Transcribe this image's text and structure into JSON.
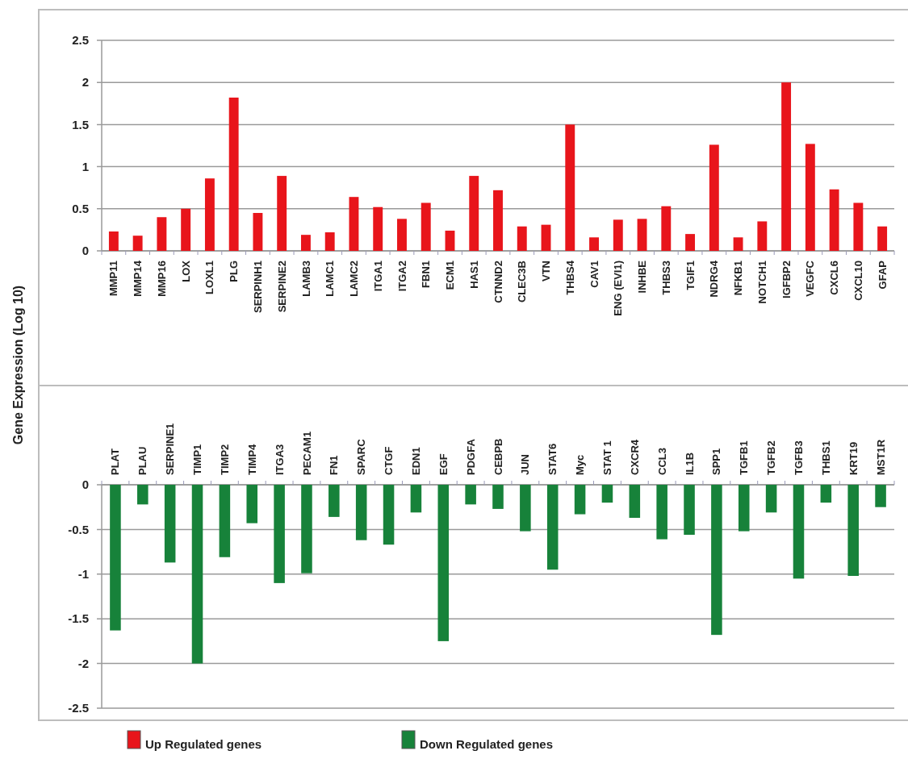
{
  "chart_data": [
    {
      "type": "bar",
      "ylabel": "Gene Expression (Log 10)",
      "categories": [
        "MMP11",
        "MMP14",
        "MMP16",
        "LOX",
        "LOXL1",
        "PLG",
        "SERPINH1",
        "SERPINE2",
        "LAMB3",
        "LAMC1",
        "LAMC2",
        "ITGA1",
        "ITGA2",
        "FBN1",
        "ECM1",
        "HAS1",
        "CTNND2",
        "CLEC3B",
        "VTN",
        "THBS4",
        "CAV1",
        "ENG (EVI1)",
        "INHBE",
        "THBS3",
        "TGIF1",
        "NDRG4",
        "NFKB1",
        "NOTCH1",
        "IGFBP2",
        "VEGFC",
        "CXCL6",
        "CXCL10",
        "GFAP"
      ],
      "series": [
        {
          "name": "Up Regulated genes",
          "color": "#e8151b",
          "values": [
            0.23,
            0.18,
            0.4,
            0.5,
            0.86,
            1.82,
            0.45,
            0.89,
            0.19,
            0.22,
            0.64,
            0.52,
            0.38,
            0.57,
            0.24,
            0.89,
            0.72,
            0.29,
            0.31,
            1.5,
            0.16,
            0.37,
            0.38,
            0.53,
            0.2,
            1.26,
            0.16,
            0.35,
            2.0,
            1.27,
            0.73,
            0.57,
            0.29
          ]
        }
      ],
      "ylim": [
        0,
        2.5
      ],
      "yticks": [
        0,
        0.5,
        1,
        1.5,
        2,
        2.5
      ],
      "grid": "y",
      "legend": "bottom"
    },
    {
      "type": "bar",
      "categories": [
        "PLAT",
        "PLAU",
        "SERPINE1",
        "TIMP1",
        "TIMP2",
        "TIMP4",
        "ITGA3",
        "PECAM1",
        "FN1",
        "SPARC",
        "CTGF",
        "EDN1",
        "EGF",
        "PDGFA",
        "CEBPB",
        "JUN",
        "STAT6",
        "Myc",
        "STAT 1",
        "CXCR4",
        "CCL3",
        "IL1B",
        "SPP1",
        "TGFB1",
        "TGFB2",
        "TGFB3",
        "THBS1",
        "KRT19",
        "MST1R"
      ],
      "series": [
        {
          "name": "Down Regulated genes",
          "color": "#17823a",
          "values": [
            -1.63,
            -0.22,
            -0.87,
            -2.0,
            -0.81,
            -0.43,
            -1.1,
            -0.99,
            -0.36,
            -0.62,
            -0.67,
            -0.31,
            -1.75,
            -0.22,
            -0.27,
            -0.52,
            -0.95,
            -0.33,
            -0.2,
            -0.37,
            -0.61,
            -0.56,
            -1.68,
            -0.52,
            -0.31,
            -1.05,
            -0.2,
            -1.02,
            -0.25
          ]
        }
      ],
      "ylim": [
        -2.5,
        0
      ],
      "yticks": [
        -2.5,
        -2,
        -1.5,
        -1,
        -0.5,
        0
      ],
      "grid": "y",
      "legend": "bottom"
    }
  ]
}
